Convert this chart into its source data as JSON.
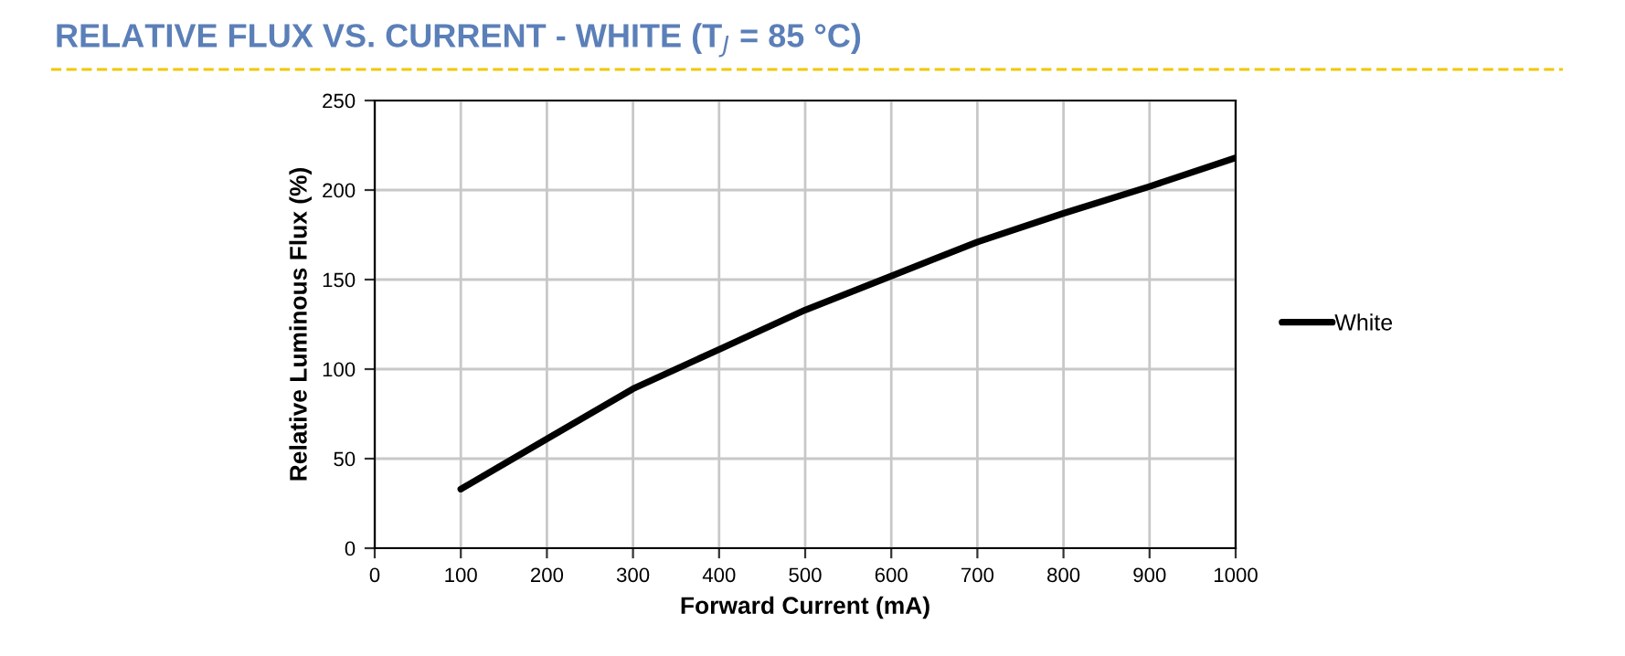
{
  "chart_data": {
    "type": "line",
    "title": "RELATIVE FLUX VS. CURRENT - WHITE (T$_{J}$ = 85 °C)",
    "xlabel": "Forward Current (mA)",
    "ylabel": "Relative Luminous Flux (%)",
    "series": [
      {
        "name": "White",
        "color": "#000000",
        "x": [
          100,
          200,
          300,
          350,
          400,
          500,
          600,
          700,
          800,
          900,
          1000
        ],
        "values": [
          33,
          61,
          89,
          100,
          111,
          133,
          152,
          171,
          187,
          202,
          218
        ]
      }
    ],
    "xlim": [
      0,
      1000
    ],
    "xticks": [
      0,
      100,
      200,
      300,
      400,
      500,
      600,
      700,
      800,
      900,
      1000
    ],
    "ylim": [
      0,
      250
    ],
    "yticks": [
      0,
      50,
      100,
      150,
      200,
      250
    ],
    "grid": true,
    "legend": "right",
    "marker": "none",
    "line_style": "solid"
  }
}
